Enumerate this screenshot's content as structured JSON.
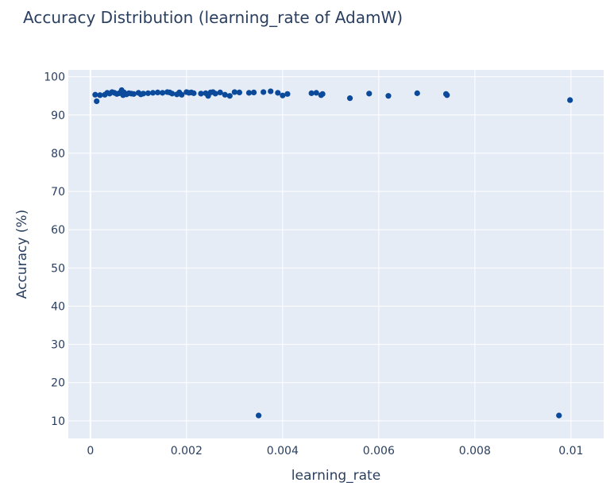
{
  "chart_data": {
    "type": "scatter",
    "title": "Accuracy Distribution (learning_rate of AdamW)",
    "xlabel": "learning_rate",
    "ylabel": "Accuracy (%)",
    "xlim": [
      -0.00046,
      0.01068
    ],
    "ylim": [
      5.4,
      101.8
    ],
    "x_ticks": [
      0,
      0.002,
      0.004,
      0.006,
      0.008,
      0.01
    ],
    "x_tick_labels": [
      "0",
      "0.002",
      "0.004",
      "0.006",
      "0.008",
      "0.01"
    ],
    "y_ticks": [
      10,
      20,
      30,
      40,
      50,
      60,
      70,
      80,
      90,
      100
    ],
    "y_tick_labels": [
      "10",
      "20",
      "30",
      "40",
      "50",
      "60",
      "70",
      "80",
      "90",
      "100"
    ],
    "grid": true,
    "colors": {
      "marker": "#0b4a9b",
      "plot_bg": "#e5ecf6",
      "grid": "#ffffff",
      "text": "#2a3f5f"
    },
    "series": [
      {
        "x": [
          0.0001,
          0.00013,
          0.0002,
          0.0003,
          0.00035,
          0.0004,
          0.00045,
          0.0005,
          0.00055,
          0.0006,
          0.00065,
          0.00068,
          0.0007,
          0.00075,
          0.0008,
          0.00085,
          0.0009,
          0.001,
          0.00105,
          0.0011,
          0.0012,
          0.0013,
          0.0014,
          0.0015,
          0.0016,
          0.00165,
          0.0017,
          0.0018,
          0.00185,
          0.0019,
          0.002,
          0.00205,
          0.0021,
          0.00215,
          0.0023,
          0.0024,
          0.00245,
          0.0025,
          0.00255,
          0.0026,
          0.0027,
          0.0028,
          0.0029,
          0.003,
          0.0031,
          0.0033,
          0.0034,
          0.0035,
          0.0036,
          0.00375,
          0.0039,
          0.004,
          0.0041,
          0.0046,
          0.0047,
          0.0048,
          0.00483,
          0.0054,
          0.0058,
          0.0062,
          0.0068,
          0.0074,
          0.00742,
          0.00975,
          0.00998
        ],
        "y": [
          95.3,
          93.6,
          95.2,
          95.3,
          95.8,
          95.6,
          96.0,
          95.8,
          95.5,
          95.7,
          96.5,
          95.2,
          95.9,
          95.4,
          95.7,
          95.6,
          95.5,
          95.8,
          95.4,
          95.6,
          95.7,
          95.8,
          95.9,
          95.8,
          96.0,
          95.9,
          95.6,
          95.4,
          95.9,
          95.3,
          96.0,
          95.8,
          95.9,
          95.7,
          95.6,
          95.7,
          95.0,
          95.9,
          96.0,
          95.6,
          95.9,
          95.3,
          95.0,
          96.0,
          95.9,
          95.8,
          95.9,
          11.4,
          96.0,
          96.2,
          95.8,
          95.1,
          95.5,
          95.7,
          95.8,
          95.2,
          95.5,
          94.4,
          95.6,
          95.0,
          95.7,
          95.5,
          95.2,
          11.4,
          93.9
        ]
      }
    ]
  }
}
